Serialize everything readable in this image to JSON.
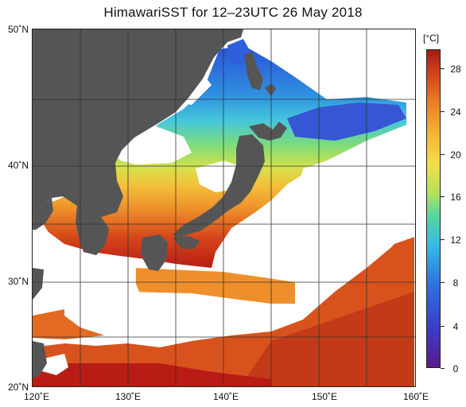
{
  "title": "HimawariSST for 12–23UTC 26 May 2018",
  "lat_labels": [
    "50˚N",
    "40˚N",
    "30˚N",
    "20˚N"
  ],
  "lon_labels": [
    "120˚E",
    "130˚E",
    "140˚E",
    "150˚E",
    "160˚E"
  ],
  "colorbar": {
    "unit": "[°C]",
    "ticks": [
      "0",
      "4",
      "8",
      "12",
      "16",
      "20",
      "24",
      "28"
    ]
  },
  "colors": {
    "land": "#555555",
    "no_data": "#ffffff",
    "cold": "#3c4fd4",
    "cool": "#45c2e0",
    "mild": "#8ede6c",
    "warm": "#f2bf3c",
    "hot": "#e2641f",
    "very_hot": "#b4291a"
  }
}
